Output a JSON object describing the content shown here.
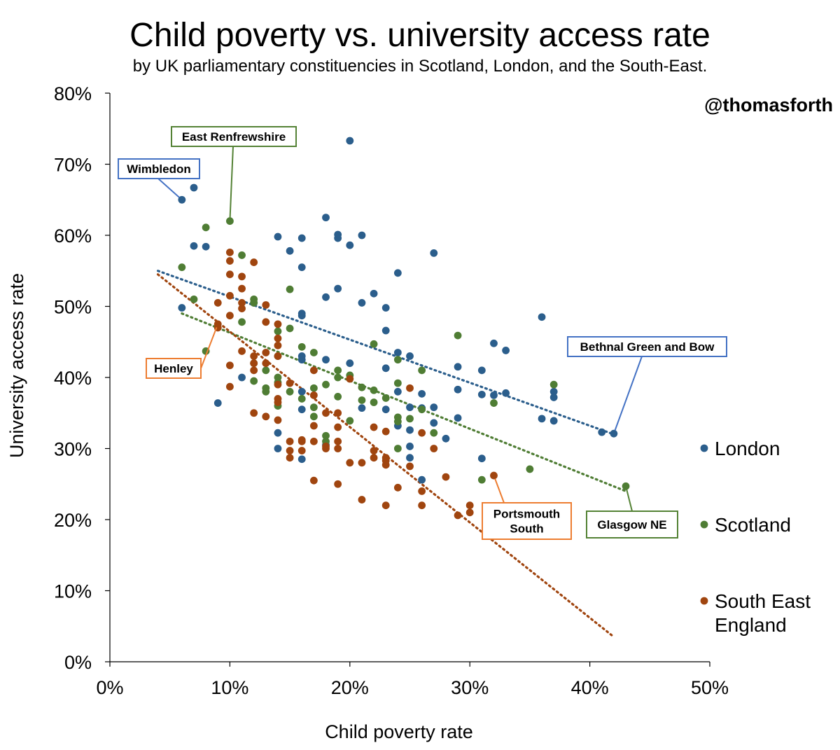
{
  "chart_data": {
    "type": "scatter",
    "title": "Child poverty vs. university access rate",
    "subtitle": "by UK parliamentary constituencies in Scotland, London, and the South-East.",
    "credit": "@thomasforth",
    "xlabel": "Child poverty rate",
    "ylabel": "University access rate",
    "xlim": [
      0,
      0.5
    ],
    "ylim": [
      0,
      0.8
    ],
    "x_ticks": [
      {
        "value": 0.0,
        "label": "0%"
      },
      {
        "value": 0.1,
        "label": "10%"
      },
      {
        "value": 0.2,
        "label": "20%"
      },
      {
        "value": 0.3,
        "label": "30%"
      },
      {
        "value": 0.4,
        "label": "40%"
      },
      {
        "value": 0.5,
        "label": "50%"
      }
    ],
    "y_ticks": [
      {
        "value": 0.0,
        "label": "0%"
      },
      {
        "value": 0.1,
        "label": "10%"
      },
      {
        "value": 0.2,
        "label": "20%"
      },
      {
        "value": 0.3,
        "label": "30%"
      },
      {
        "value": 0.4,
        "label": "40%"
      },
      {
        "value": 0.5,
        "label": "50%"
      },
      {
        "value": 0.6,
        "label": "60%"
      },
      {
        "value": 0.7,
        "label": "70%"
      },
      {
        "value": 0.8,
        "label": "80%"
      }
    ],
    "grid": false,
    "legend": "right",
    "series": [
      {
        "name": "London",
        "color": "#2b5e8c",
        "trendline": [
          [
            0.04,
            0.55
          ],
          [
            0.42,
            0.32
          ]
        ],
        "points": [
          [
            0.06,
            0.65
          ],
          [
            0.07,
            0.667
          ],
          [
            0.07,
            0.585
          ],
          [
            0.08,
            0.584
          ],
          [
            0.06,
            0.498
          ],
          [
            0.09,
            0.364
          ],
          [
            0.11,
            0.4
          ],
          [
            0.12,
            0.505
          ],
          [
            0.14,
            0.598
          ],
          [
            0.15,
            0.578
          ],
          [
            0.16,
            0.596
          ],
          [
            0.16,
            0.555
          ],
          [
            0.16,
            0.49
          ],
          [
            0.16,
            0.487
          ],
          [
            0.16,
            0.43
          ],
          [
            0.16,
            0.425
          ],
          [
            0.16,
            0.38
          ],
          [
            0.16,
            0.355
          ],
          [
            0.16,
            0.285
          ],
          [
            0.14,
            0.322
          ],
          [
            0.14,
            0.3
          ],
          [
            0.18,
            0.625
          ],
          [
            0.18,
            0.513
          ],
          [
            0.18,
            0.425
          ],
          [
            0.18,
            0.305
          ],
          [
            0.19,
            0.601
          ],
          [
            0.19,
            0.596
          ],
          [
            0.19,
            0.525
          ],
          [
            0.2,
            0.733
          ],
          [
            0.2,
            0.586
          ],
          [
            0.2,
            0.42
          ],
          [
            0.21,
            0.6
          ],
          [
            0.21,
            0.505
          ],
          [
            0.21,
            0.357
          ],
          [
            0.22,
            0.518
          ],
          [
            0.23,
            0.498
          ],
          [
            0.23,
            0.466
          ],
          [
            0.23,
            0.413
          ],
          [
            0.23,
            0.355
          ],
          [
            0.24,
            0.547
          ],
          [
            0.24,
            0.435
          ],
          [
            0.24,
            0.38
          ],
          [
            0.24,
            0.332
          ],
          [
            0.25,
            0.43
          ],
          [
            0.25,
            0.358
          ],
          [
            0.25,
            0.326
          ],
          [
            0.25,
            0.303
          ],
          [
            0.25,
            0.287
          ],
          [
            0.26,
            0.377
          ],
          [
            0.26,
            0.357
          ],
          [
            0.26,
            0.256
          ],
          [
            0.27,
            0.575
          ],
          [
            0.27,
            0.358
          ],
          [
            0.27,
            0.336
          ],
          [
            0.28,
            0.314
          ],
          [
            0.29,
            0.415
          ],
          [
            0.29,
            0.383
          ],
          [
            0.29,
            0.343
          ],
          [
            0.31,
            0.41
          ],
          [
            0.31,
            0.376
          ],
          [
            0.31,
            0.286
          ],
          [
            0.32,
            0.448
          ],
          [
            0.32,
            0.375
          ],
          [
            0.33,
            0.438
          ],
          [
            0.33,
            0.378
          ],
          [
            0.36,
            0.485
          ],
          [
            0.36,
            0.342
          ],
          [
            0.37,
            0.38
          ],
          [
            0.37,
            0.372
          ],
          [
            0.37,
            0.339
          ],
          [
            0.41,
            0.323
          ],
          [
            0.42,
            0.321
          ]
        ]
      },
      {
        "name": "Scotland",
        "color": "#4f7d34",
        "trendline": [
          [
            0.06,
            0.49
          ],
          [
            0.43,
            0.24
          ]
        ],
        "points": [
          [
            0.06,
            0.555
          ],
          [
            0.07,
            0.51
          ],
          [
            0.08,
            0.611
          ],
          [
            0.08,
            0.437
          ],
          [
            0.1,
            0.62
          ],
          [
            0.11,
            0.572
          ],
          [
            0.11,
            0.478
          ],
          [
            0.12,
            0.51
          ],
          [
            0.12,
            0.505
          ],
          [
            0.12,
            0.42
          ],
          [
            0.12,
            0.395
          ],
          [
            0.13,
            0.385
          ],
          [
            0.13,
            0.38
          ],
          [
            0.13,
            0.41
          ],
          [
            0.14,
            0.465
          ],
          [
            0.14,
            0.43
          ],
          [
            0.14,
            0.4
          ],
          [
            0.14,
            0.393
          ],
          [
            0.14,
            0.36
          ],
          [
            0.15,
            0.524
          ],
          [
            0.15,
            0.469
          ],
          [
            0.15,
            0.38
          ],
          [
            0.16,
            0.443
          ],
          [
            0.16,
            0.37
          ],
          [
            0.17,
            0.435
          ],
          [
            0.17,
            0.385
          ],
          [
            0.17,
            0.358
          ],
          [
            0.17,
            0.345
          ],
          [
            0.18,
            0.39
          ],
          [
            0.18,
            0.318
          ],
          [
            0.18,
            0.31
          ],
          [
            0.19,
            0.41
          ],
          [
            0.19,
            0.4
          ],
          [
            0.19,
            0.373
          ],
          [
            0.2,
            0.403
          ],
          [
            0.2,
            0.339
          ],
          [
            0.21,
            0.386
          ],
          [
            0.21,
            0.368
          ],
          [
            0.22,
            0.447
          ],
          [
            0.22,
            0.382
          ],
          [
            0.22,
            0.365
          ],
          [
            0.23,
            0.371
          ],
          [
            0.24,
            0.425
          ],
          [
            0.24,
            0.392
          ],
          [
            0.24,
            0.344
          ],
          [
            0.24,
            0.338
          ],
          [
            0.24,
            0.3
          ],
          [
            0.25,
            0.342
          ],
          [
            0.26,
            0.41
          ],
          [
            0.26,
            0.355
          ],
          [
            0.27,
            0.322
          ],
          [
            0.29,
            0.459
          ],
          [
            0.31,
            0.256
          ],
          [
            0.32,
            0.364
          ],
          [
            0.35,
            0.271
          ],
          [
            0.37,
            0.39
          ],
          [
            0.43,
            0.247
          ]
        ]
      },
      {
        "name": "South East England",
        "color": "#a0450f",
        "trendline": [
          [
            0.04,
            0.545
          ],
          [
            0.42,
            0.035
          ]
        ],
        "points": [
          [
            0.09,
            0.505
          ],
          [
            0.09,
            0.475
          ],
          [
            0.09,
            0.47
          ],
          [
            0.1,
            0.576
          ],
          [
            0.1,
            0.564
          ],
          [
            0.1,
            0.545
          ],
          [
            0.1,
            0.515
          ],
          [
            0.1,
            0.487
          ],
          [
            0.1,
            0.417
          ],
          [
            0.1,
            0.387
          ],
          [
            0.11,
            0.542
          ],
          [
            0.11,
            0.525
          ],
          [
            0.11,
            0.505
          ],
          [
            0.11,
            0.497
          ],
          [
            0.11,
            0.437
          ],
          [
            0.12,
            0.562
          ],
          [
            0.12,
            0.43
          ],
          [
            0.12,
            0.42
          ],
          [
            0.12,
            0.41
          ],
          [
            0.12,
            0.35
          ],
          [
            0.13,
            0.502
          ],
          [
            0.13,
            0.478
          ],
          [
            0.13,
            0.435
          ],
          [
            0.13,
            0.42
          ],
          [
            0.13,
            0.345
          ],
          [
            0.14,
            0.475
          ],
          [
            0.14,
            0.455
          ],
          [
            0.14,
            0.445
          ],
          [
            0.14,
            0.43
          ],
          [
            0.14,
            0.39
          ],
          [
            0.14,
            0.37
          ],
          [
            0.14,
            0.365
          ],
          [
            0.14,
            0.34
          ],
          [
            0.15,
            0.392
          ],
          [
            0.15,
            0.31
          ],
          [
            0.15,
            0.297
          ],
          [
            0.15,
            0.287
          ],
          [
            0.16,
            0.312
          ],
          [
            0.16,
            0.31
          ],
          [
            0.16,
            0.297
          ],
          [
            0.17,
            0.41
          ],
          [
            0.17,
            0.375
          ],
          [
            0.17,
            0.332
          ],
          [
            0.17,
            0.31
          ],
          [
            0.17,
            0.255
          ],
          [
            0.18,
            0.35
          ],
          [
            0.18,
            0.303
          ],
          [
            0.18,
            0.3
          ],
          [
            0.19,
            0.35
          ],
          [
            0.19,
            0.33
          ],
          [
            0.19,
            0.31
          ],
          [
            0.19,
            0.3
          ],
          [
            0.19,
            0.25
          ],
          [
            0.2,
            0.398
          ],
          [
            0.2,
            0.28
          ],
          [
            0.21,
            0.28
          ],
          [
            0.21,
            0.228
          ],
          [
            0.22,
            0.33
          ],
          [
            0.22,
            0.297
          ],
          [
            0.22,
            0.287
          ],
          [
            0.23,
            0.324
          ],
          [
            0.23,
            0.287
          ],
          [
            0.23,
            0.283
          ],
          [
            0.23,
            0.277
          ],
          [
            0.23,
            0.22
          ],
          [
            0.24,
            0.245
          ],
          [
            0.25,
            0.385
          ],
          [
            0.25,
            0.275
          ],
          [
            0.26,
            0.322
          ],
          [
            0.26,
            0.24
          ],
          [
            0.26,
            0.22
          ],
          [
            0.27,
            0.3
          ],
          [
            0.28,
            0.26
          ],
          [
            0.29,
            0.206
          ],
          [
            0.3,
            0.22
          ],
          [
            0.3,
            0.21
          ],
          [
            0.32,
            0.262
          ]
        ]
      }
    ],
    "annotations": [
      {
        "text": "East Renfrewshire",
        "lines": [
          "East Renfrewshire"
        ],
        "series": "Scotland",
        "point": [
          0.1,
          0.62
        ]
      },
      {
        "text": "Wimbledon",
        "lines": [
          "Wimbledon"
        ],
        "series": "London",
        "point": [
          0.06,
          0.65
        ]
      },
      {
        "text": "Henley",
        "lines": [
          "Henley"
        ],
        "series": "South East England",
        "point": [
          0.09,
          0.475
        ]
      },
      {
        "text": "Bethnal Green and Bow",
        "lines": [
          "Bethnal Green and Bow"
        ],
        "series": "London",
        "point": [
          0.42,
          0.321
        ]
      },
      {
        "text": "Portsmouth South",
        "lines": [
          "Portsmouth",
          "South"
        ],
        "series": "South East England",
        "point": [
          0.32,
          0.262
        ]
      },
      {
        "text": "Glasgow NE",
        "lines": [
          "Glasgow NE"
        ],
        "series": "Scotland",
        "point": [
          0.43,
          0.247
        ]
      }
    ],
    "legend_entries": [
      {
        "series": "London",
        "lines": [
          "London"
        ]
      },
      {
        "series": "Scotland",
        "lines": [
          "Scotland"
        ]
      },
      {
        "series": "South East England",
        "lines": [
          "South East",
          "England"
        ]
      }
    ]
  }
}
